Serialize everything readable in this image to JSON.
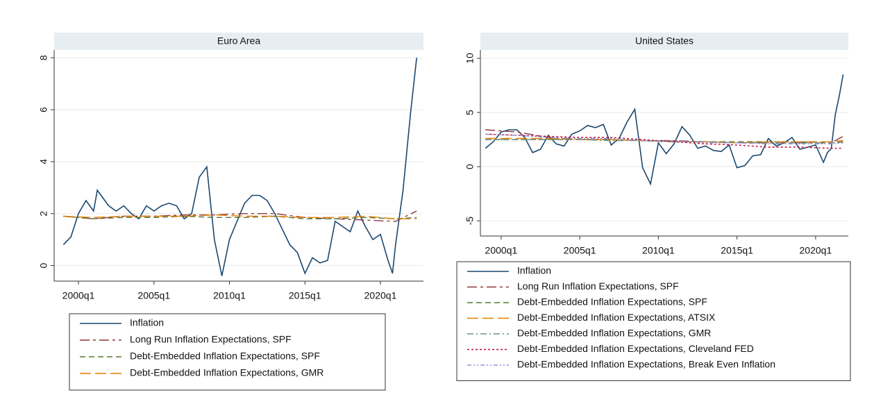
{
  "chart_data": [
    {
      "type": "line",
      "title": "Euro Area",
      "xlim": [
        1998.39,
        2022.85
      ],
      "ylim": [
        -0.6,
        8.3
      ],
      "xticks": [
        {
          "value": 2000,
          "label": "2000q1"
        },
        {
          "value": 2005,
          "label": "2005q1"
        },
        {
          "value": 2010,
          "label": "2010q1"
        },
        {
          "value": 2015,
          "label": "2015q1"
        },
        {
          "value": 2020,
          "label": "2020q1"
        }
      ],
      "yticks": [
        0,
        2,
        4,
        6,
        8
      ],
      "grid": true,
      "series": [
        {
          "name": "Inflation",
          "color": "#1a476f",
          "style": "solid",
          "x": [
            1999,
            1999.5,
            2000,
            2000.5,
            2001,
            2001.25,
            2001.5,
            2002,
            2002.5,
            2003,
            2003.5,
            2004,
            2004.5,
            2005,
            2005.5,
            2006,
            2006.5,
            2007,
            2007.5,
            2008,
            2008.5,
            2009,
            2009.5,
            2010,
            2010.5,
            2011,
            2011.5,
            2012,
            2012.5,
            2013,
            2013.5,
            2014,
            2014.5,
            2015,
            2015.5,
            2016,
            2016.5,
            2017,
            2017.5,
            2018,
            2018.5,
            2019,
            2019.5,
            2020,
            2020.5,
            2020.8,
            2021,
            2021.5,
            2022,
            2022.4
          ],
          "values": [
            0.8,
            1.1,
            2.0,
            2.5,
            2.1,
            2.9,
            2.7,
            2.3,
            2.1,
            2.3,
            2.0,
            1.8,
            2.3,
            2.1,
            2.3,
            2.4,
            2.3,
            1.8,
            2.0,
            3.4,
            3.8,
            1.0,
            -0.4,
            1.0,
            1.7,
            2.4,
            2.7,
            2.7,
            2.5,
            2.0,
            1.4,
            0.8,
            0.5,
            -0.3,
            0.3,
            0.1,
            0.2,
            1.7,
            1.5,
            1.3,
            2.1,
            1.5,
            1.0,
            1.2,
            0.2,
            -0.3,
            0.8,
            2.9,
            5.9,
            8.0
          ]
        },
        {
          "name": "Long Run Inflation Expectations, SPF",
          "color": "#90353b",
          "style": "longdash",
          "x": [
            1999,
            2001,
            2003,
            2005,
            2007,
            2009,
            2011,
            2013,
            2015,
            2017,
            2019,
            2021,
            2022.4
          ],
          "values": [
            1.9,
            1.8,
            1.9,
            1.9,
            1.95,
            1.95,
            2.0,
            2.0,
            1.85,
            1.8,
            1.75,
            1.7,
            2.1
          ]
        },
        {
          "name": "Debt-Embedded Inflation Expectations, SPF",
          "color": "#55752f",
          "style": "dash",
          "x": [
            1999,
            2001,
            2003,
            2005,
            2007,
            2009,
            2011,
            2013,
            2015,
            2017,
            2019,
            2021,
            2022.4
          ],
          "values": [
            1.9,
            1.8,
            1.85,
            1.85,
            1.9,
            1.85,
            1.85,
            1.9,
            1.8,
            1.8,
            1.85,
            1.8,
            1.85
          ]
        },
        {
          "name": "Debt-Embedded Inflation Expectations, GMR",
          "color": "#e37e00",
          "style": "longdash2",
          "x": [
            1999,
            2001,
            2003,
            2005,
            2007,
            2009,
            2011,
            2013,
            2015,
            2017,
            2019,
            2021,
            2022.4
          ],
          "values": [
            1.9,
            1.85,
            1.9,
            1.9,
            1.9,
            1.95,
            1.9,
            1.9,
            1.85,
            1.85,
            1.9,
            1.8,
            1.8
          ]
        }
      ]
    },
    {
      "type": "line",
      "title": "United States",
      "xlim": [
        1998.68,
        2022.08
      ],
      "ylim": [
        -6.4,
        10.77
      ],
      "xticks": [
        {
          "value": 2000,
          "label": "2000q1"
        },
        {
          "value": 2005,
          "label": "2005q1"
        },
        {
          "value": 2010,
          "label": "2010q1"
        },
        {
          "value": 2015,
          "label": "2015q1"
        },
        {
          "value": 2020,
          "label": "2020q1"
        }
      ],
      "yticks": [
        -5,
        0,
        5,
        10
      ],
      "grid": true,
      "series": [
        {
          "name": "Inflation",
          "color": "#1a476f",
          "style": "solid",
          "x": [
            1999,
            1999.5,
            2000,
            2000.5,
            2001,
            2001.5,
            2002,
            2002.5,
            2003,
            2003.5,
            2004,
            2004.5,
            2005,
            2005.5,
            2006,
            2006.5,
            2007,
            2007.5,
            2008,
            2008.5,
            2009,
            2009.5,
            2010,
            2010.5,
            2011,
            2011.5,
            2012,
            2012.5,
            2013,
            2013.5,
            2014,
            2014.5,
            2015,
            2015.5,
            2016,
            2016.5,
            2017,
            2017.5,
            2018,
            2018.5,
            2019,
            2019.5,
            2020,
            2020.5,
            2020.75,
            2021,
            2021.25,
            2021.5,
            2021.75
          ],
          "values": [
            1.7,
            2.3,
            3.2,
            3.4,
            3.4,
            2.7,
            1.3,
            1.6,
            2.9,
            2.1,
            1.9,
            3.0,
            3.3,
            3.8,
            3.6,
            3.9,
            2.0,
            2.6,
            4.1,
            5.3,
            -0.1,
            -1.6,
            2.2,
            1.2,
            2.1,
            3.7,
            2.9,
            1.7,
            1.9,
            1.5,
            1.4,
            2.0,
            -0.1,
            0.1,
            1.0,
            1.1,
            2.6,
            1.9,
            2.2,
            2.7,
            1.6,
            1.8,
            2.0,
            0.4,
            1.3,
            1.7,
            4.8,
            6.5,
            8.5
          ]
        },
        {
          "name": "Long Run Inflation Expectations, SPF",
          "color": "#90353b",
          "style": "longdash",
          "x": [
            1999,
            2001,
            2003,
            2005,
            2007,
            2009,
            2011,
            2013,
            2015,
            2017,
            2019,
            2021,
            2021.75
          ],
          "values": [
            3.4,
            3.2,
            2.7,
            2.5,
            2.5,
            2.4,
            2.4,
            2.3,
            2.2,
            2.2,
            2.2,
            2.2,
            2.8
          ]
        },
        {
          "name": "Debt-Embedded Inflation Expectations, SPF",
          "color": "#55752f",
          "style": "dash",
          "x": [
            1999,
            2001,
            2003,
            2005,
            2007,
            2009,
            2011,
            2013,
            2015,
            2017,
            2019,
            2021,
            2021.75
          ],
          "values": [
            2.5,
            2.5,
            2.5,
            2.5,
            2.5,
            2.4,
            2.3,
            2.3,
            2.3,
            2.3,
            2.3,
            2.2,
            2.3
          ]
        },
        {
          "name": "Debt-Embedded Inflation Expectations, ATSIX",
          "color": "#e37e00",
          "style": "longdash2",
          "x": [
            1999,
            2001,
            2003,
            2005,
            2007,
            2009,
            2011,
            2013,
            2015,
            2017,
            2019,
            2021,
            2021.75
          ],
          "values": [
            2.6,
            2.6,
            2.6,
            2.5,
            2.5,
            2.4,
            2.3,
            2.3,
            2.2,
            2.3,
            2.3,
            2.3,
            2.4
          ]
        },
        {
          "name": "Debt-Embedded Inflation Expectations, GMR",
          "color": "#6e8e84",
          "style": "dashdot",
          "x": [
            1999,
            2001,
            2003,
            2005,
            2007,
            2009,
            2011,
            2013,
            2015,
            2017,
            2019,
            2021,
            2021.75
          ],
          "values": [
            2.5,
            2.5,
            2.5,
            2.5,
            2.4,
            2.4,
            2.3,
            2.3,
            2.2,
            2.2,
            2.2,
            2.2,
            2.2
          ]
        },
        {
          "name": "Debt-Embedded Inflation Expectations, Cleveland FED",
          "color": "#c10534",
          "style": "dot",
          "x": [
            1999,
            2001,
            2003,
            2005,
            2007,
            2009,
            2011,
            2013,
            2015,
            2017,
            2019,
            2021,
            2021.75
          ],
          "values": [
            3.0,
            2.9,
            2.8,
            2.7,
            2.7,
            2.5,
            2.3,
            2.1,
            2.0,
            1.8,
            1.8,
            1.7,
            1.7
          ]
        },
        {
          "name": "Debt-Embedded Inflation Expectations, Break Even Inflation",
          "color": "#938dd2",
          "style": "dashdotdot",
          "x": [
            1999,
            2001,
            2003,
            2005,
            2007,
            2009,
            2011,
            2013,
            2015,
            2017,
            2019,
            2021,
            2021.75
          ],
          "values": [
            3.0,
            2.9,
            2.7,
            2.6,
            2.6,
            2.4,
            2.4,
            2.2,
            2.2,
            2.1,
            2.1,
            2.1,
            2.2
          ]
        }
      ]
    }
  ]
}
